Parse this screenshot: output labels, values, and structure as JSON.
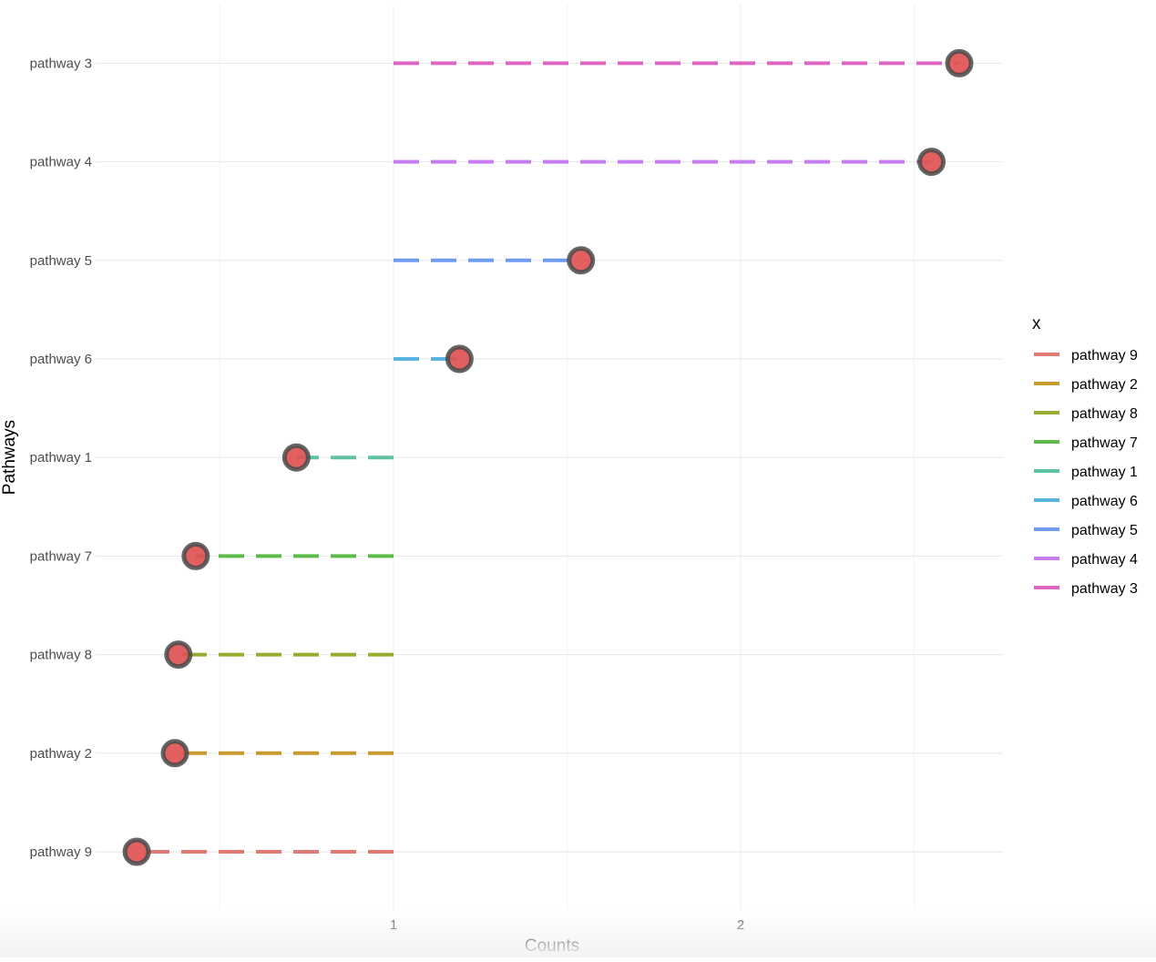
{
  "chart_data": {
    "type": "lollipop",
    "title": "",
    "xlabel": "Counts",
    "ylabel": "Pathways",
    "baseline": 1,
    "xlim": [
      0.25,
      2.75
    ],
    "x_ticks": [
      1,
      2
    ],
    "x_minor_gridlines": [
      0.5,
      1.5,
      2.5
    ],
    "grid": true,
    "categories": [
      "pathway 9",
      "pathway 2",
      "pathway 8",
      "pathway 7",
      "pathway 1",
      "pathway 6",
      "pathway 5",
      "pathway 4",
      "pathway 3"
    ],
    "values": [
      0.26,
      0.37,
      0.38,
      0.43,
      0.72,
      1.19,
      1.54,
      2.55,
      2.63
    ],
    "series_colors": [
      "#E07A73",
      "#C89A2E",
      "#9AAA2E",
      "#5CBB49",
      "#5FC2A4",
      "#5AB4E0",
      "#6E9BF0",
      "#C77CF2",
      "#DE66C1"
    ],
    "point_fill": "#E05252",
    "point_stroke": "#4a4a4a",
    "legend": {
      "title": "x",
      "position": "right",
      "entries": [
        "pathway 9",
        "pathway 2",
        "pathway 8",
        "pathway 7",
        "pathway 1",
        "pathway 6",
        "pathway 5",
        "pathway 4",
        "pathway 3"
      ]
    }
  }
}
